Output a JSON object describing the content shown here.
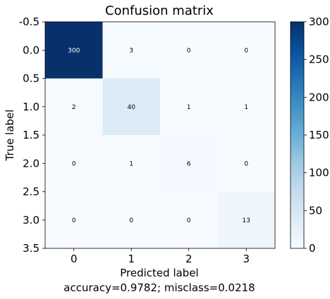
{
  "chart_data": {
    "type": "heatmap",
    "title": "Confusion matrix",
    "xlabel": "Predicted label",
    "ylabel": "True label",
    "subtitle": "accuracy=0.9782; misclass=0.0218",
    "x_categories": [
      "0",
      "1",
      "2",
      "3"
    ],
    "y_ticks": [
      "-0.5",
      "0.0",
      "0.5",
      "1.0",
      "1.5",
      "2.0",
      "2.5",
      "3.0",
      "3.5"
    ],
    "values": [
      [
        300,
        3,
        0,
        0
      ],
      [
        2,
        40,
        1,
        1
      ],
      [
        0,
        1,
        6,
        0
      ],
      [
        0,
        0,
        0,
        13
      ]
    ],
    "colormap": "Blues",
    "color_range": [
      0,
      300
    ],
    "colorbar_ticks": [
      "0",
      "50",
      "100",
      "150",
      "200",
      "250",
      "300"
    ],
    "colors": {
      "low": "#f7fbff",
      "high": "#08306b"
    }
  }
}
